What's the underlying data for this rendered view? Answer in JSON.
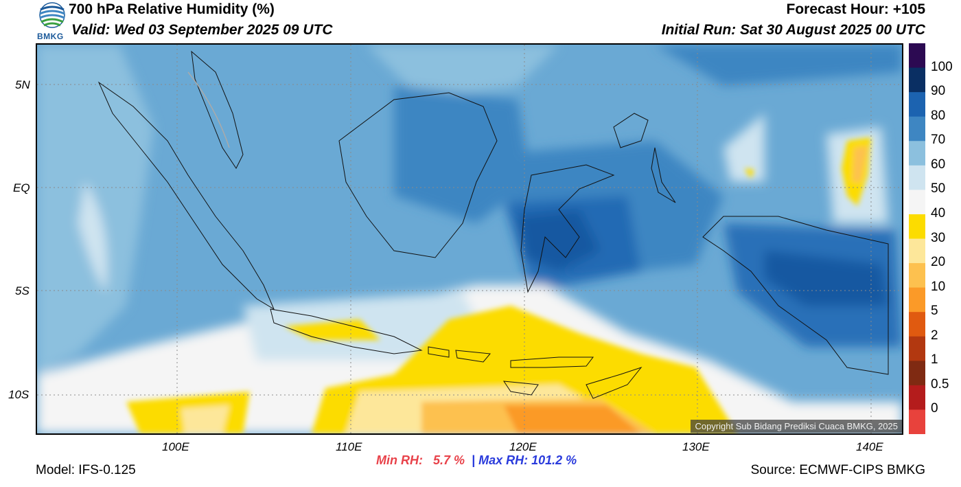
{
  "header": {
    "title": "700 hPa Relative Humidity (%)",
    "valid": "Valid: Wed 03 September 2025 09 UTC",
    "forecast_hour": "Forecast Hour: +105",
    "initial_run": "Initial Run: Sat 30 August 2025 00 UTC",
    "logo_text": "BMKG"
  },
  "map": {
    "lat_labels": [
      "5N",
      "EQ",
      "5S",
      "10S"
    ],
    "lon_labels": [
      "100E",
      "110E",
      "120E",
      "130E",
      "140E"
    ],
    "copyright": "Copyright Sub Bidang Prediksi Cuaca BMKG, 2025"
  },
  "colorbar": {
    "labels": [
      "100",
      "90",
      "80",
      "70",
      "60",
      "50",
      "40",
      "30",
      "20",
      "10",
      "5",
      "2",
      "1",
      "0.5",
      "0"
    ],
    "colors": [
      "#2c0a52",
      "#0a2f63",
      "#1c63b0",
      "#3e86c2",
      "#8cc0de",
      "#cfe4f0",
      "#f5f5f5",
      "#fcdc00",
      "#fde79a",
      "#fdc14f",
      "#fb9a28",
      "#e05a10",
      "#b23810",
      "#7f2a12",
      "#b41c1c",
      "#e8423c"
    ]
  },
  "footer": {
    "min_rh_label": "Min RH:",
    "min_rh_value": "5.7 %",
    "separator": "|",
    "max_rh_label": "Max RH:",
    "max_rh_value": "101.2 %",
    "model": "Model: IFS-0.125",
    "source": "Source: ECMWF-CIPS BMKG"
  }
}
